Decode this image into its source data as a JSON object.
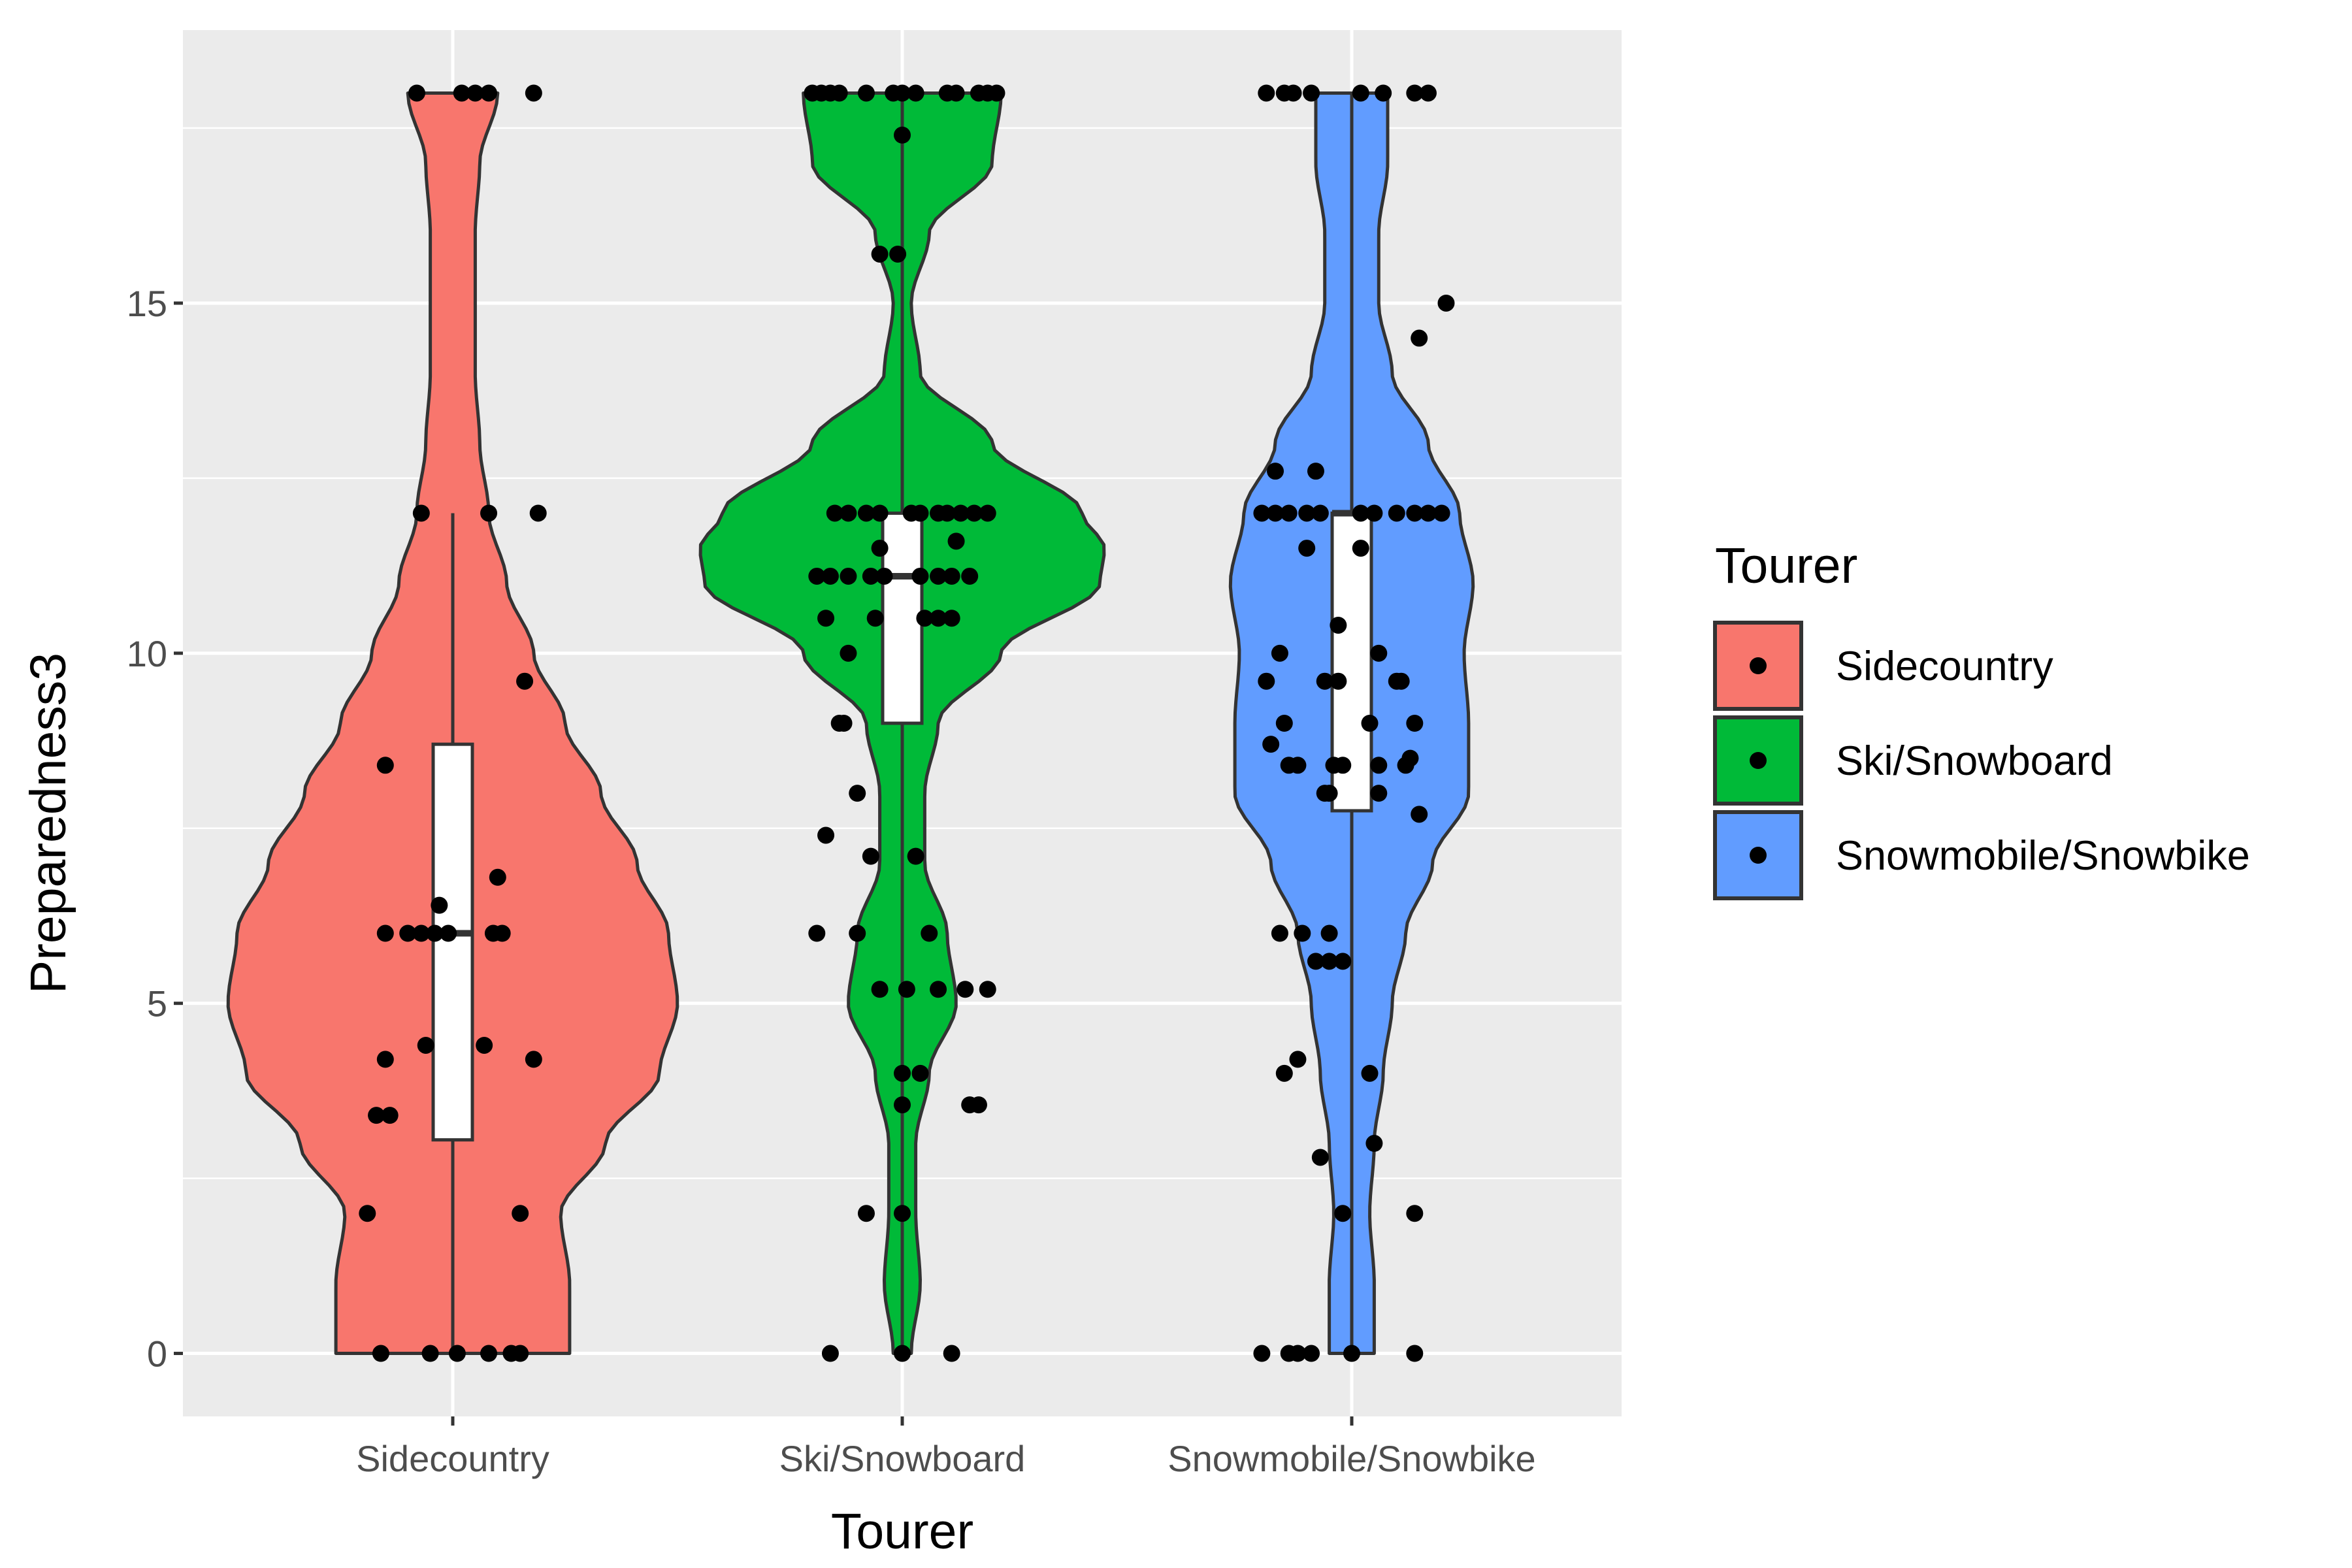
{
  "chart_data": {
    "type": "violin",
    "title": "",
    "xlabel": "Tourer",
    "ylabel": "Preparedness3",
    "ylim": [
      -0.9,
      18.9
    ],
    "yticks": [
      0,
      5,
      10,
      15
    ],
    "ytick_labels": [
      "0",
      "5",
      "10",
      "15"
    ],
    "grid": true,
    "categories": [
      "Sidecountry",
      "Ski/Snowboard",
      "Snowmobile/Snowbike"
    ],
    "legend": {
      "title": "Tourer",
      "placement": "right",
      "entries": [
        "Sidecountry",
        "Ski/Snowboard",
        "Snowmobile/Snowbike"
      ]
    },
    "series": [
      {
        "name": "Sidecountry",
        "color": "#F8766D",
        "box": {
          "q1": 3.05,
          "median": 6.0,
          "q3": 8.7,
          "whisker_low": 0,
          "whisker_high": 12
        },
        "violin_profile": [
          [
            0,
            0.26
          ],
          [
            1,
            0.26
          ],
          [
            2,
            0.24
          ],
          [
            3,
            0.34
          ],
          [
            4,
            0.46
          ],
          [
            5,
            0.5
          ],
          [
            6,
            0.48
          ],
          [
            7,
            0.41
          ],
          [
            8,
            0.33
          ],
          [
            9,
            0.25
          ],
          [
            10,
            0.18
          ],
          [
            11,
            0.12
          ],
          [
            12,
            0.08
          ],
          [
            13,
            0.06
          ],
          [
            14,
            0.05
          ],
          [
            15,
            0.05
          ],
          [
            16,
            0.05
          ],
          [
            17,
            0.06
          ],
          [
            18,
            0.1
          ]
        ],
        "points": [
          [
            -0.08,
            18
          ],
          [
            0.02,
            18
          ],
          [
            0.05,
            18
          ],
          [
            0.08,
            18
          ],
          [
            0.18,
            18
          ],
          [
            -0.07,
            12
          ],
          [
            0.08,
            12
          ],
          [
            0.19,
            12
          ],
          [
            0.16,
            9.6
          ],
          [
            0.1,
            6.8
          ],
          [
            -0.15,
            8.4
          ],
          [
            -0.15,
            6
          ],
          [
            -0.1,
            6
          ],
          [
            -0.07,
            6
          ],
          [
            -0.04,
            6
          ],
          [
            -0.01,
            6
          ],
          [
            0.09,
            6
          ],
          [
            0.11,
            6
          ],
          [
            -0.03,
            6.4
          ],
          [
            -0.06,
            4.4
          ],
          [
            0.07,
            4.4
          ],
          [
            0.18,
            4.2
          ],
          [
            -0.15,
            4.2
          ],
          [
            -0.17,
            3.4
          ],
          [
            -0.14,
            3.4
          ],
          [
            -0.19,
            2
          ],
          [
            0.15,
            2
          ],
          [
            -0.16,
            0
          ],
          [
            -0.05,
            0
          ],
          [
            0.01,
            0
          ],
          [
            0.08,
            0
          ],
          [
            0.13,
            0
          ],
          [
            0.15,
            0
          ]
        ]
      },
      {
        "name": "Ski/Snowboard",
        "color": "#00BA38",
        "box": {
          "q1": 9.0,
          "median": 11.1,
          "q3": 12.0,
          "whisker_low": 0,
          "whisker_high": 18
        },
        "violin_profile": [
          [
            0,
            0.02
          ],
          [
            1,
            0.04
          ],
          [
            2,
            0.03
          ],
          [
            3,
            0.03
          ],
          [
            4,
            0.06
          ],
          [
            5,
            0.12
          ],
          [
            6,
            0.1
          ],
          [
            7,
            0.05
          ],
          [
            8,
            0.05
          ],
          [
            9,
            0.08
          ],
          [
            10,
            0.22
          ],
          [
            11,
            0.44
          ],
          [
            11.5,
            0.45
          ],
          [
            12,
            0.4
          ],
          [
            13,
            0.2
          ],
          [
            14,
            0.04
          ],
          [
            15,
            0.02
          ],
          [
            16,
            0.06
          ],
          [
            17,
            0.2
          ],
          [
            18,
            0.22
          ]
        ],
        "points": [
          [
            -0.2,
            18
          ],
          [
            -0.18,
            18
          ],
          [
            -0.16,
            18
          ],
          [
            -0.14,
            18
          ],
          [
            -0.08,
            18
          ],
          [
            -0.02,
            18
          ],
          [
            0,
            18
          ],
          [
            0.03,
            18
          ],
          [
            0.1,
            18
          ],
          [
            0.12,
            18
          ],
          [
            0.17,
            18
          ],
          [
            0.19,
            18
          ],
          [
            0.21,
            18
          ],
          [
            0,
            17.4
          ],
          [
            -0.05,
            15.7
          ],
          [
            -0.01,
            15.7
          ],
          [
            -0.15,
            12
          ],
          [
            -0.12,
            12
          ],
          [
            -0.08,
            12
          ],
          [
            -0.05,
            12
          ],
          [
            0.02,
            12
          ],
          [
            0.04,
            12
          ],
          [
            0.08,
            12
          ],
          [
            0.1,
            12
          ],
          [
            0.13,
            12
          ],
          [
            0.16,
            12
          ],
          [
            0.19,
            12
          ],
          [
            0.12,
            11.6
          ],
          [
            -0.05,
            11.5
          ],
          [
            -0.19,
            11.1
          ],
          [
            -0.16,
            11.1
          ],
          [
            -0.12,
            11.1
          ],
          [
            -0.07,
            11.1
          ],
          [
            -0.04,
            11.1
          ],
          [
            0.04,
            11.1
          ],
          [
            0.08,
            11.1
          ],
          [
            0.11,
            11.1
          ],
          [
            0.15,
            11.1
          ],
          [
            -0.17,
            10.5
          ],
          [
            -0.06,
            10.5
          ],
          [
            0.05,
            10.5
          ],
          [
            0.08,
            10.5
          ],
          [
            0.11,
            10.5
          ],
          [
            -0.12,
            10
          ],
          [
            -0.14,
            9
          ],
          [
            -0.13,
            9
          ],
          [
            -0.1,
            8
          ],
          [
            -0.17,
            7.4
          ],
          [
            -0.07,
            7.1
          ],
          [
            0.03,
            7.1
          ],
          [
            -0.19,
            6
          ],
          [
            -0.1,
            6
          ],
          [
            0.06,
            6
          ],
          [
            -0.05,
            5.2
          ],
          [
            0.01,
            5.2
          ],
          [
            0.08,
            5.2
          ],
          [
            0.14,
            5.2
          ],
          [
            0.19,
            5.2
          ],
          [
            0.0,
            4
          ],
          [
            0.04,
            4
          ],
          [
            0.15,
            3.55
          ],
          [
            0.17,
            3.55
          ],
          [
            0.0,
            3.55
          ],
          [
            -0.08,
            2
          ],
          [
            0.0,
            2
          ],
          [
            -0.16,
            0
          ],
          [
            0.0,
            0
          ],
          [
            0.11,
            0
          ]
        ]
      },
      {
        "name": "Snowmobile/Snowbike",
        "color": "#619CFF",
        "box": {
          "q1": 7.75,
          "median": 12.0,
          "q3": 12.0,
          "whisker_low": 0,
          "whisker_high": 18
        },
        "violin_profile": [
          [
            0,
            0.05
          ],
          [
            1,
            0.05
          ],
          [
            2,
            0.04
          ],
          [
            3,
            0.05
          ],
          [
            4,
            0.07
          ],
          [
            5,
            0.09
          ],
          [
            6,
            0.12
          ],
          [
            7,
            0.18
          ],
          [
            8,
            0.26
          ],
          [
            9,
            0.26
          ],
          [
            10,
            0.25
          ],
          [
            11,
            0.27
          ],
          [
            12,
            0.24
          ],
          [
            13,
            0.17
          ],
          [
            14,
            0.09
          ],
          [
            15,
            0.06
          ],
          [
            16,
            0.06
          ],
          [
            17,
            0.08
          ],
          [
            18,
            0.08
          ]
        ],
        "points": [
          [
            -0.19,
            18
          ],
          [
            -0.15,
            18
          ],
          [
            -0.13,
            18
          ],
          [
            -0.09,
            18
          ],
          [
            0.02,
            18
          ],
          [
            0.07,
            18
          ],
          [
            0.14,
            18
          ],
          [
            0.17,
            18
          ],
          [
            0.21,
            15
          ],
          [
            0.15,
            14.5
          ],
          [
            -0.17,
            12.6
          ],
          [
            -0.08,
            12.6
          ],
          [
            -0.2,
            12
          ],
          [
            -0.17,
            12
          ],
          [
            -0.14,
            12
          ],
          [
            -0.1,
            12
          ],
          [
            -0.07,
            12
          ],
          [
            0.02,
            12
          ],
          [
            0.05,
            12
          ],
          [
            0.1,
            12
          ],
          [
            0.14,
            12
          ],
          [
            0.17,
            12
          ],
          [
            0.2,
            12
          ],
          [
            -0.1,
            11.5
          ],
          [
            0.02,
            11.5
          ],
          [
            -0.03,
            10.4
          ],
          [
            0.06,
            10
          ],
          [
            -0.16,
            10
          ],
          [
            -0.19,
            9.6
          ],
          [
            -0.06,
            9.6
          ],
          [
            -0.03,
            9.6
          ],
          [
            0.1,
            9.6
          ],
          [
            0.11,
            9.6
          ],
          [
            -0.15,
            9
          ],
          [
            0.04,
            9
          ],
          [
            0.14,
            9
          ],
          [
            -0.18,
            8.7
          ],
          [
            -0.14,
            8.4
          ],
          [
            -0.12,
            8.4
          ],
          [
            -0.04,
            8.4
          ],
          [
            -0.02,
            8.4
          ],
          [
            0.06,
            8.4
          ],
          [
            0.12,
            8.4
          ],
          [
            0.13,
            8.5
          ],
          [
            -0.06,
            8
          ],
          [
            -0.05,
            8
          ],
          [
            0.06,
            8
          ],
          [
            0.15,
            7.7
          ],
          [
            -0.16,
            6
          ],
          [
            -0.11,
            6
          ],
          [
            -0.05,
            6
          ],
          [
            -0.05,
            5.6
          ],
          [
            -0.02,
            5.6
          ],
          [
            -0.08,
            5.6
          ],
          [
            -0.12,
            4.2
          ],
          [
            -0.15,
            4
          ],
          [
            0.04,
            4
          ],
          [
            -0.07,
            2.8
          ],
          [
            0.05,
            3
          ],
          [
            -0.02,
            2
          ],
          [
            0.14,
            2
          ],
          [
            -0.2,
            0
          ],
          [
            -0.14,
            0
          ],
          [
            -0.12,
            0
          ],
          [
            -0.09,
            0
          ],
          [
            0.0,
            0
          ],
          [
            0.14,
            0
          ]
        ]
      }
    ]
  }
}
